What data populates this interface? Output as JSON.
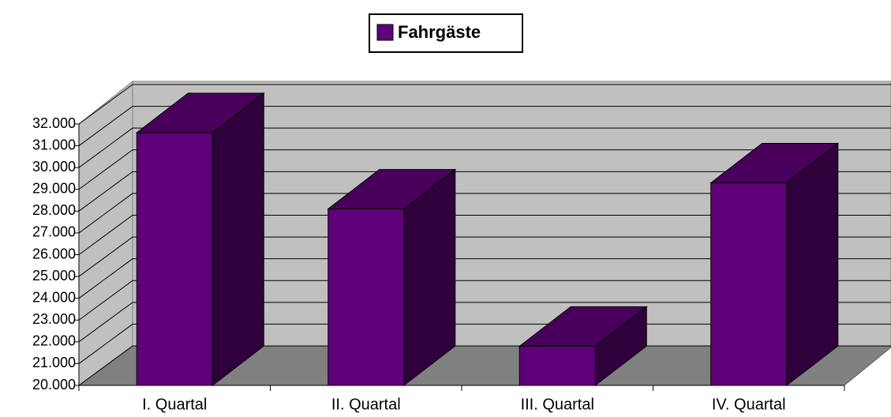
{
  "chart_data": {
    "type": "bar3d",
    "categories": [
      "I. Quartal",
      "II. Quartal",
      "III. Quartal",
      "IV. Quartal"
    ],
    "series": [
      {
        "name": "Fahrgäste",
        "color": "#600078",
        "values": [
          31600,
          28100,
          21800,
          29300
        ]
      }
    ],
    "ylim": [
      20000,
      32000
    ],
    "yticks": [
      {
        "value": 20000,
        "label": "20.000"
      },
      {
        "value": 21000,
        "label": "21.000"
      },
      {
        "value": 22000,
        "label": "22.000"
      },
      {
        "value": 23000,
        "label": "23.000"
      },
      {
        "value": 24000,
        "label": "24.000"
      },
      {
        "value": 25000,
        "label": "25.000"
      },
      {
        "value": 26000,
        "label": "26.000"
      },
      {
        "value": 27000,
        "label": "27.000"
      },
      {
        "value": 28000,
        "label": "28.000"
      },
      {
        "value": 29000,
        "label": "29.000"
      },
      {
        "value": 30000,
        "label": "30.000"
      },
      {
        "value": 31000,
        "label": "31.000"
      },
      {
        "value": 32000,
        "label": "32.000"
      }
    ],
    "grid": true,
    "legend": "top"
  }
}
